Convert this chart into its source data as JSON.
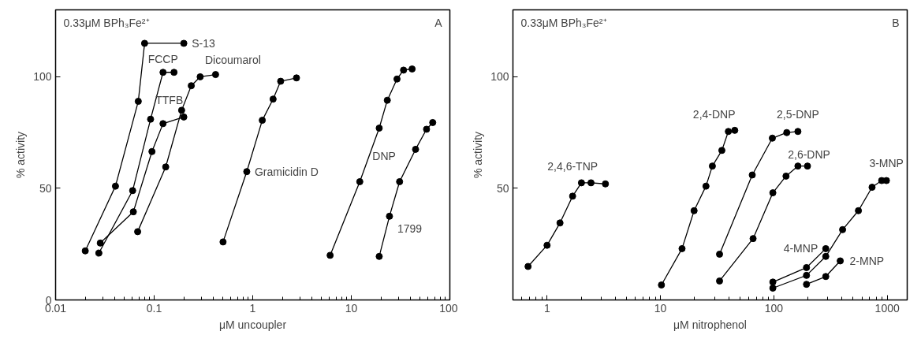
{
  "chart_data": [
    {
      "type": "line",
      "xlabel": "μM uncoupler",
      "ylabel": "% activity",
      "log": "x",
      "xlim": [
        0.01,
        100
      ],
      "xticks": [
        0.01,
        0.1,
        1,
        10,
        100
      ],
      "ylim": [
        0,
        130
      ],
      "yticks": [
        0,
        50,
        100
      ],
      "grid": false,
      "marker": "circle",
      "line_style": "solid",
      "annotations": [
        "0.33μM BPh₃Fe²⁺",
        "A"
      ],
      "series": [
        {
          "name": "S-13",
          "color": "#000000",
          "x": [
            0.02,
            0.0405,
            0.069,
            0.08,
            0.2
          ],
          "values": [
            22,
            51,
            89,
            115,
            115
          ]
        },
        {
          "name": "FCCP",
          "color": "#000000",
          "x": [
            0.0275,
            0.0605,
            0.092,
            0.123,
            0.159
          ],
          "values": [
            21,
            49,
            81,
            102,
            102
          ]
        },
        {
          "name": "TTFB",
          "color": "#000000",
          "x": [
            0.0284,
            0.0615,
            0.095,
            0.123,
            0.2
          ],
          "values": [
            25.5,
            39.5,
            66.5,
            79,
            82
          ]
        },
        {
          "name": "Dicoumarol",
          "color": "#000000",
          "x": [
            0.068,
            0.131,
            0.19,
            0.238,
            0.293,
            0.42
          ],
          "values": [
            30.6,
            59.6,
            85,
            96,
            100,
            101
          ]
        },
        {
          "name": "Gramicidin D",
          "color": "#000000",
          "x": [
            0.5,
            0.87,
            1.25,
            1.61,
            1.92,
            2.78
          ],
          "values": [
            26,
            57.5,
            80.5,
            90,
            98,
            99.5
          ]
        },
        {
          "name": "DNP",
          "color": "#000000",
          "x": [
            6.1,
            12.2,
            19.2,
            23.2,
            29.1,
            33.9,
            41.4
          ],
          "values": [
            20,
            53,
            77,
            89.5,
            99,
            103,
            103.5
          ]
        },
        {
          "name": "1799",
          "color": "#000000",
          "x": [
            19.2,
            24.4,
            30.9,
            44.9,
            58,
            67
          ],
          "values": [
            19.5,
            37.5,
            53,
            67.5,
            76.5,
            79.5
          ]
        }
      ]
    },
    {
      "type": "line",
      "xlabel": "μM nitrophenol",
      "ylabel": "% activity",
      "log": "x",
      "xlim": [
        0.5,
        1500
      ],
      "xticks": [
        1,
        10,
        100,
        1000
      ],
      "ylim": [
        0,
        130
      ],
      "yticks": [
        50,
        100
      ],
      "grid": false,
      "marker": "circle",
      "line_style": "solid",
      "annotations": [
        "0.33μM BPh₃Fe²⁺",
        "B"
      ],
      "series": [
        {
          "name": "2,4,6-TNP",
          "color": "#000000",
          "x": [
            0.68,
            1.0,
            1.3,
            1.68,
            2.01,
            2.44,
            3.27
          ],
          "values": [
            15,
            24.5,
            34.5,
            46.5,
            52.5,
            52.5,
            52
          ]
        },
        {
          "name": "2,4-DNP",
          "color": "#000000",
          "x": [
            10.2,
            15.5,
            19.8,
            25.2,
            28.7,
            34.8,
            39.7,
            45.2
          ],
          "values": [
            6.7,
            23,
            40,
            51,
            60,
            67,
            75.5,
            76
          ]
        },
        {
          "name": "2,5-DNP",
          "color": "#000000",
          "x": [
            33.2,
            64.5,
            97,
            130,
            163
          ],
          "values": [
            20.5,
            56,
            72.5,
            75,
            75.5
          ]
        },
        {
          "name": "2,6-DNP",
          "color": "#000000",
          "x": [
            33.2,
            65.6,
            98,
            128,
            163,
            198
          ],
          "values": [
            8.5,
            27.5,
            48,
            55.5,
            60,
            60
          ]
        },
        {
          "name": "4-MNP",
          "color": "#000000",
          "x": [
            98,
            194,
            287
          ],
          "values": [
            8,
            14.5,
            23
          ]
        },
        {
          "name": "3-MNP",
          "color": "#000000",
          "x": [
            98,
            194,
            287,
            404,
            557,
            735,
            893,
            984
          ],
          "values": [
            5.3,
            11,
            19.5,
            31.5,
            40,
            50.5,
            53.5,
            53.5
          ]
        },
        {
          "name": "2-MNP",
          "color": "#000000",
          "x": [
            194,
            287,
            385
          ],
          "values": [
            7,
            10.5,
            17.5
          ]
        }
      ]
    }
  ]
}
